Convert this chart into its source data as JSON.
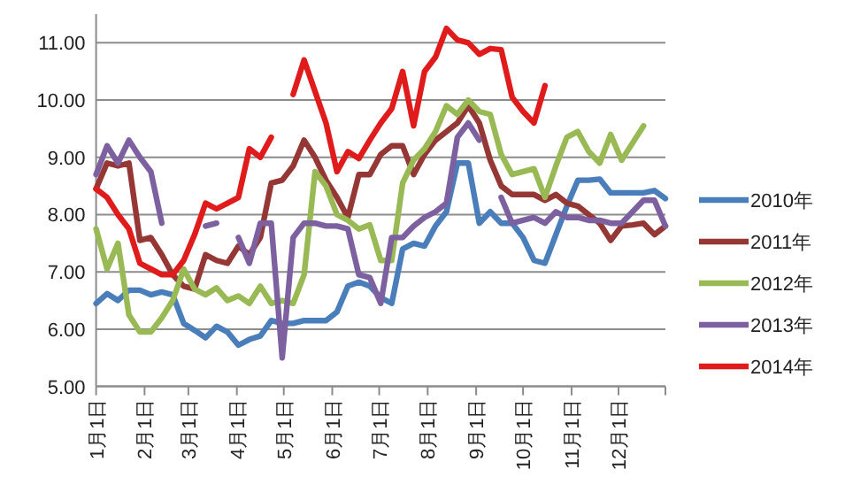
{
  "chart_data": {
    "type": "line",
    "x": [
      "--01-01",
      "--01-08",
      "--01-15",
      "--01-22",
      "--01-29",
      "--02-05",
      "--02-12",
      "--02-19",
      "--02-26",
      "--03-05",
      "--03-12",
      "--03-19",
      "--03-26",
      "--04-02",
      "--04-09",
      "--04-16",
      "--04-23",
      "--04-30",
      "--05-07",
      "--05-14",
      "--05-21",
      "--05-28",
      "--06-04",
      "--06-11",
      "--06-18",
      "--06-25",
      "--07-02",
      "--07-09",
      "--07-16",
      "--07-23",
      "--07-30",
      "--08-06",
      "--08-13",
      "--08-20",
      "--08-27",
      "--09-03",
      "--09-10",
      "--09-17",
      "--09-24",
      "--10-01",
      "--10-08",
      "--10-15",
      "--10-22",
      "--10-29",
      "--11-05",
      "--11-12",
      "--11-19",
      "--11-26",
      "--12-03",
      "--12-10",
      "--12-17",
      "--12-24",
      "--12-31"
    ],
    "series": [
      {
        "name": "2010年",
        "color": "#4a7ebb",
        "values": [
          6.45,
          6.62,
          6.5,
          6.68,
          6.68,
          6.6,
          6.65,
          6.6,
          6.1,
          5.98,
          5.85,
          6.05,
          5.95,
          5.72,
          5.82,
          5.88,
          6.15,
          6.1,
          6.1,
          6.15,
          6.15,
          6.15,
          6.3,
          6.75,
          6.82,
          6.75,
          6.55,
          6.45,
          7.4,
          7.5,
          7.45,
          7.8,
          8.05,
          8.9,
          8.9,
          7.85,
          8.05,
          7.85,
          7.85,
          7.6,
          7.2,
          7.15,
          7.65,
          8.15,
          8.6,
          8.6,
          8.62,
          8.38,
          8.38,
          8.38,
          8.38,
          8.42,
          8.28
        ]
      },
      {
        "name": "2011年",
        "color": "#953735",
        "values": [
          8.45,
          8.9,
          8.85,
          8.9,
          7.55,
          7.6,
          7.3,
          6.95,
          6.75,
          6.7,
          7.3,
          7.2,
          7.15,
          7.45,
          7.3,
          7.6,
          8.55,
          8.6,
          8.85,
          9.3,
          9.0,
          8.6,
          8.3,
          7.95,
          8.7,
          8.7,
          9.05,
          9.2,
          9.2,
          8.7,
          9.05,
          9.3,
          9.45,
          9.6,
          9.9,
          9.6,
          8.95,
          8.5,
          8.35,
          8.35,
          8.35,
          8.25,
          8.35,
          8.2,
          8.15,
          8.0,
          7.85,
          7.55,
          7.8,
          7.82,
          7.85,
          7.65,
          7.8
        ]
      },
      {
        "name": "2012年",
        "color": "#98b954",
        "values": [
          7.75,
          7.05,
          7.5,
          6.25,
          5.95,
          5.95,
          6.2,
          6.5,
          7.05,
          6.7,
          6.6,
          6.72,
          6.5,
          6.58,
          6.45,
          6.75,
          6.45,
          6.5,
          6.45,
          6.95,
          8.75,
          8.5,
          8.0,
          7.9,
          7.75,
          7.82,
          7.2,
          7.2,
          8.55,
          8.95,
          9.15,
          9.45,
          9.9,
          9.75,
          10.0,
          9.8,
          9.75,
          9.05,
          8.7,
          8.75,
          8.8,
          8.3,
          8.85,
          9.35,
          9.45,
          9.1,
          8.9,
          9.4,
          8.95,
          9.25,
          9.55,
          null,
          null
        ]
      },
      {
        "name": "2013年",
        "color": "#7d60a0",
        "values": [
          8.7,
          9.2,
          8.9,
          9.3,
          9.0,
          8.75,
          7.85,
          null,
          null,
          null,
          7.8,
          7.85,
          null,
          7.6,
          7.15,
          7.85,
          7.85,
          5.5,
          7.6,
          7.85,
          7.85,
          7.8,
          7.8,
          7.75,
          6.95,
          6.9,
          6.45,
          7.6,
          7.6,
          7.8,
          7.95,
          8.05,
          8.2,
          9.35,
          9.6,
          9.3,
          null,
          8.3,
          7.85,
          7.9,
          7.95,
          7.85,
          8.05,
          7.95,
          7.95,
          7.9,
          7.9,
          7.85,
          7.85,
          8.05,
          8.25,
          8.25,
          7.8
        ]
      },
      {
        "name": "2014年",
        "color": "#e01b1b",
        "values": [
          8.45,
          8.3,
          8.0,
          7.75,
          7.15,
          7.05,
          6.95,
          6.95,
          7.2,
          7.65,
          8.2,
          8.1,
          8.2,
          8.3,
          9.15,
          9.0,
          9.35,
          null,
          10.1,
          10.7,
          10.15,
          9.6,
          8.75,
          9.1,
          8.98,
          9.3,
          9.6,
          9.85,
          10.5,
          9.55,
          10.5,
          10.75,
          11.25,
          11.05,
          11.0,
          10.8,
          10.9,
          10.88,
          10.05,
          9.8,
          9.6,
          10.25,
          null,
          null,
          null,
          null,
          null,
          null,
          null,
          null,
          null,
          null,
          null
        ]
      }
    ],
    "xlim": [
      "--01-01",
      "--12-31"
    ],
    "xticks": [
      {
        "value": "--01-01",
        "label": "1月1日"
      },
      {
        "value": "--02-01",
        "label": "2月1日"
      },
      {
        "value": "--03-01",
        "label": "3月1日"
      },
      {
        "value": "--04-01",
        "label": "4月1日"
      },
      {
        "value": "--05-01",
        "label": "5月1日"
      },
      {
        "value": "--06-01",
        "label": "6月1日"
      },
      {
        "value": "--07-01",
        "label": "7月1日"
      },
      {
        "value": "--08-01",
        "label": "8月1日"
      },
      {
        "value": "--09-01",
        "label": "9月1日"
      },
      {
        "value": "--10-01",
        "label": "10月1日"
      },
      {
        "value": "--11-01",
        "label": "11月1日"
      },
      {
        "value": "--12-01",
        "label": "12月1日"
      },
      {
        "value": "--12-31",
        "label": null
      }
    ],
    "ylim": [
      5,
      11.5
    ],
    "yticks": [
      {
        "value": 5,
        "label": "5.00"
      },
      {
        "value": 6,
        "label": "6.00"
      },
      {
        "value": 7,
        "label": "7.00"
      },
      {
        "value": 8,
        "label": "8.00"
      },
      {
        "value": 9,
        "label": "9.00"
      },
      {
        "value": 10,
        "label": "10.00"
      },
      {
        "value": 11,
        "label": "11.00"
      }
    ],
    "grid": "y",
    "legend": "right"
  }
}
